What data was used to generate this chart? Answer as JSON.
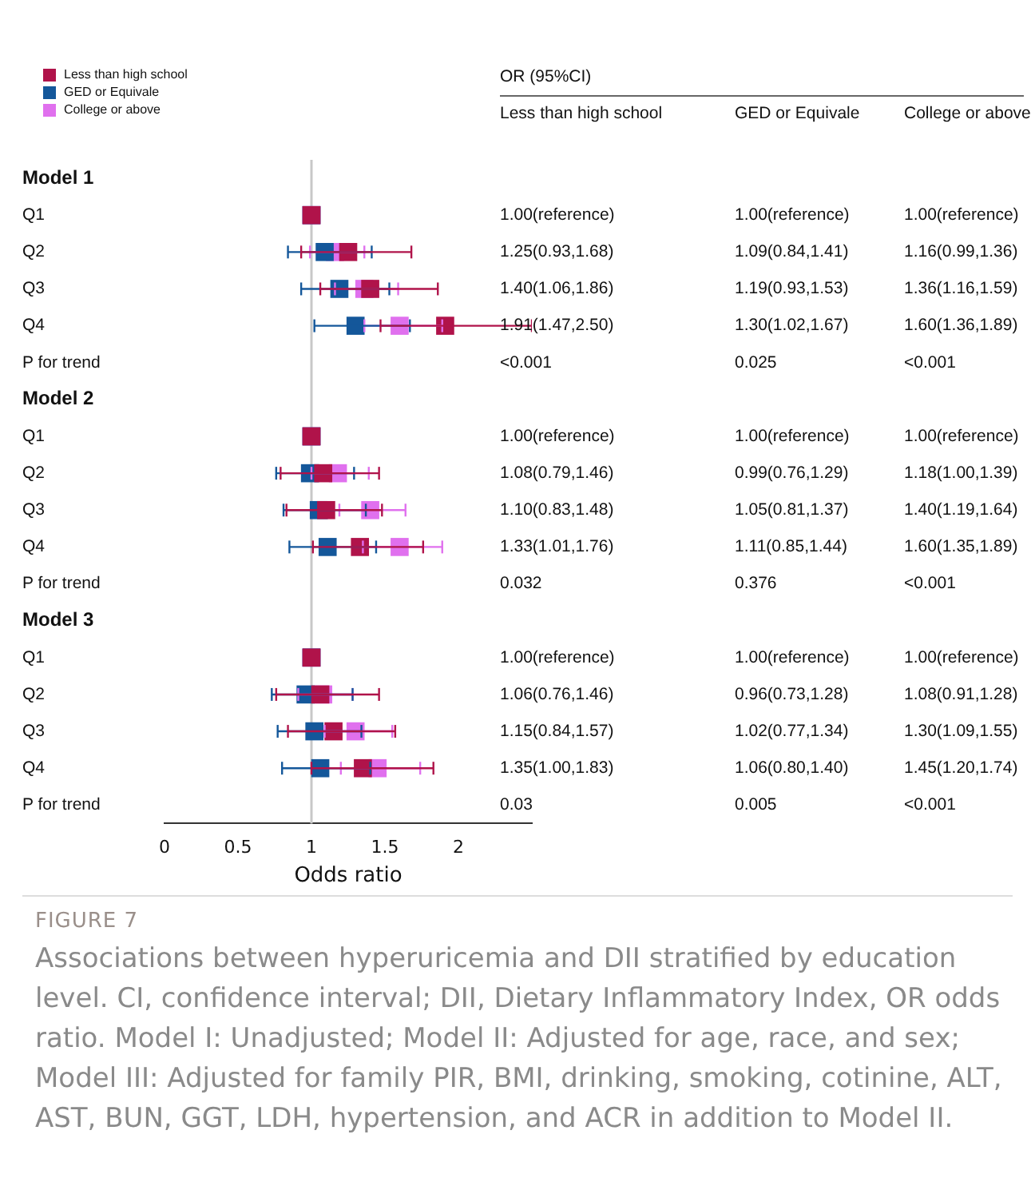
{
  "chart_data": {
    "type": "scatter",
    "orientation": "horizontal",
    "marker": "square",
    "grid": false,
    "legend": "top left",
    "xlabel": "Odds ratio",
    "categories": [
      "Model 1",
      "Q1",
      "Q2",
      "Q3",
      "Q4",
      "P for trend",
      "Model 2",
      "Q1",
      "Q2",
      "Q3",
      "Q4",
      "P for trend",
      "Model 3",
      "Q1",
      "Q2",
      "Q3",
      "Q4",
      "P for trend"
    ],
    "xlim": [
      0,
      2.5
    ],
    "xticks": [
      0,
      0.5,
      1,
      1.5,
      2
    ],
    "ref_lines": [
      {
        "axis": "x",
        "value": 1,
        "color": "#c8c8c8"
      }
    ],
    "series": [
      {
        "name": "Less than high school",
        "color": "#b0134a",
        "values": [
          null,
          1.0,
          1.25,
          1.4,
          1.91,
          null,
          null,
          1.0,
          1.08,
          1.1,
          1.33,
          null,
          null,
          1.0,
          1.06,
          1.15,
          1.35,
          null
        ],
        "errors": [
          null,
          null,
          [
            0.93,
            1.68
          ],
          [
            1.06,
            1.86
          ],
          [
            1.47,
            2.5
          ],
          null,
          null,
          null,
          [
            0.79,
            1.46
          ],
          [
            0.83,
            1.48
          ],
          [
            1.01,
            1.76
          ],
          null,
          null,
          null,
          [
            0.76,
            1.46
          ],
          [
            0.84,
            1.57
          ],
          [
            1.0,
            1.83
          ],
          null
        ],
        "value_labels": [
          null,
          "1.00(reference)",
          "1.25(0.93,1.68)",
          "1.40(1.06,1.86)",
          "1.91(1.47,2.50)",
          "<0.001",
          null,
          "1.00(reference)",
          "1.08(0.79,1.46)",
          "1.10(0.83,1.48)",
          "1.33(1.01,1.76)",
          "0.032",
          null,
          "1.00(reference)",
          "1.06(0.76,1.46)",
          "1.15(0.84,1.57)",
          "1.35(1.00,1.83)",
          "0.03"
        ]
      },
      {
        "name": "GED or Equivale",
        "color": "#14579a",
        "values": [
          null,
          1.0,
          1.09,
          1.19,
          1.3,
          null,
          null,
          1.0,
          0.99,
          1.05,
          1.11,
          null,
          null,
          1.0,
          0.96,
          1.02,
          1.06,
          null
        ],
        "errors": [
          null,
          null,
          [
            0.84,
            1.41
          ],
          [
            0.93,
            1.53
          ],
          [
            1.02,
            1.67
          ],
          null,
          null,
          null,
          [
            0.76,
            1.29
          ],
          [
            0.81,
            1.37
          ],
          [
            0.85,
            1.44
          ],
          null,
          null,
          null,
          [
            0.73,
            1.28
          ],
          [
            0.77,
            1.34
          ],
          [
            0.8,
            1.4
          ],
          null
        ],
        "value_labels": [
          null,
          "1.00(reference)",
          "1.09(0.84,1.41)",
          "1.19(0.93,1.53)",
          "1.30(1.02,1.67)",
          "0.025",
          null,
          "1.00(reference)",
          "0.99(0.76,1.29)",
          "1.05(0.81,1.37)",
          "1.11(0.85,1.44)",
          "0.376",
          null,
          "1.00(reference)",
          "0.96(0.73,1.28)",
          "1.02(0.77,1.34)",
          "1.06(0.80,1.40)",
          "0.005"
        ]
      },
      {
        "name": "College or above",
        "color": "#e070ee",
        "values": [
          null,
          1.0,
          1.16,
          1.36,
          1.6,
          null,
          null,
          1.0,
          1.18,
          1.4,
          1.6,
          null,
          null,
          1.0,
          1.08,
          1.3,
          1.45,
          null
        ],
        "errors": [
          null,
          null,
          [
            0.99,
            1.36
          ],
          [
            1.16,
            1.59
          ],
          [
            1.36,
            1.89
          ],
          null,
          null,
          null,
          [
            1.0,
            1.39
          ],
          [
            1.19,
            1.64
          ],
          [
            1.35,
            1.89
          ],
          null,
          null,
          null,
          [
            0.91,
            1.28
          ],
          [
            1.09,
            1.55
          ],
          [
            1.2,
            1.74
          ],
          null
        ],
        "value_labels": [
          null,
          "1.00(reference)",
          "1.16(0.99,1.36)",
          "1.36(1.16,1.59)",
          "1.60(1.36,1.89)",
          "<0.001",
          null,
          "1.00(reference)",
          "1.18(1.00,1.39)",
          "1.40(1.19,1.64)",
          "1.60(1.35,1.89)",
          "<0.001",
          null,
          "1.00(reference)",
          "1.08(0.91,1.28)",
          "1.30(1.09,1.55)",
          "1.45(1.20,1.74)",
          "<0.001"
        ]
      }
    ],
    "annotations": [
      "OR (95%CI)",
      "FIGURE 7",
      "Associations between hyperuricemia and DII stratified by education level. CI, confidence interval; DII,  Dietary Inflammatory Index, OR odds ratio. Model I: Unadjusted; Model II: Adjusted for age, race, and sex; Model III: Adjusted for family PIR, BMI, drinking, smoking, cotinine, ALT, AST, BUN, GGT, LDH, hypertension, and ACR in addition to Model II."
    ]
  }
}
